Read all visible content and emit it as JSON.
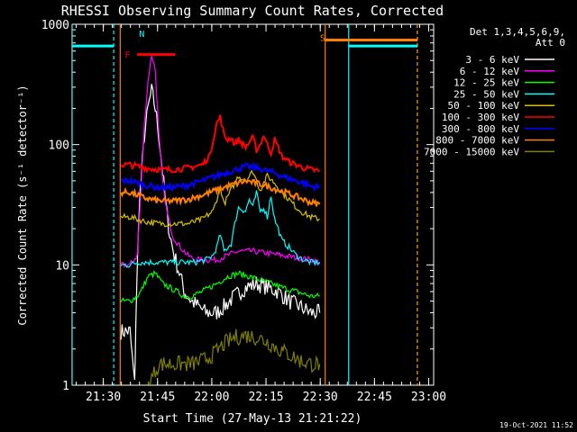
{
  "chart_data": {
    "type": "line",
    "title": "RHESSI Observing Summary Count Rates, Corrected",
    "xlabel": "Start Time (27-May-13 21:21:22)",
    "ylabel": "Corrected Count Rate (s⁻¹ detector⁻¹)",
    "x_unit": "minutes after 21:21:22",
    "xlim": [
      0,
      100
    ],
    "ylim": [
      1,
      1000
    ],
    "y_scale": "log",
    "x_ticks": [
      {
        "x": 8.63,
        "label": "21:30"
      },
      {
        "x": 23.63,
        "label": "21:45"
      },
      {
        "x": 38.63,
        "label": "22:00"
      },
      {
        "x": 53.63,
        "label": "22:15"
      },
      {
        "x": 68.63,
        "label": "22:30"
      },
      {
        "x": 83.63,
        "label": "22:45"
      },
      {
        "x": 98.63,
        "label": "23:00"
      }
    ],
    "y_ticks": [
      {
        "y": 1,
        "label": "1"
      },
      {
        "y": 10,
        "label": "10"
      },
      {
        "y": 100,
        "label": "100"
      },
      {
        "y": 1000,
        "label": "1000"
      }
    ],
    "legend": {
      "position": "right",
      "header1": "Det 1,3,4,5,6,9,",
      "header2": "Att 0",
      "entries": [
        {
          "label": "3 - 6 keV",
          "color": "#ffffff"
        },
        {
          "label": "6 - 12 keV",
          "color": "#ff00ff"
        },
        {
          "label": "12 - 25 keV",
          "color": "#00ff00"
        },
        {
          "label": "25 - 50 keV",
          "color": "#00ffff"
        },
        {
          "label": "50 - 100 keV",
          "color": "#d8c000"
        },
        {
          "label": "100 - 300 keV",
          "color": "#ff0000"
        },
        {
          "label": "300 - 800 keV",
          "color": "#0000ff"
        },
        {
          "label": "800 - 7000 keV",
          "color": "#ff8000"
        },
        {
          "label": "7000 - 15000 keV",
          "color": "#808000"
        }
      ]
    },
    "series": [
      {
        "name": "3 - 6 keV",
        "color": "#000000",
        "x": [
          13.5,
          16,
          17.3,
          17.6,
          18.5,
          20,
          21,
          22,
          23,
          24,
          25,
          26,
          27,
          28,
          29,
          30,
          31,
          33,
          35,
          37,
          40,
          42,
          45,
          48,
          51,
          54,
          57,
          60,
          63,
          66,
          68.5
        ],
        "y": [
          2.8,
          2.8,
          1.0,
          3.2,
          30,
          120,
          200,
          280,
          200,
          120,
          60,
          30,
          18,
          13,
          10,
          8,
          6,
          5,
          4.5,
          4,
          4,
          4.5,
          5.5,
          6.5,
          7,
          6.5,
          6,
          5,
          4.5,
          4,
          4
        ]
      },
      {
        "name": "6 - 12 keV",
        "color": "#ff00ff",
        "x": [
          13.5,
          16,
          18,
          19,
          20,
          21,
          22,
          23,
          24,
          25,
          26,
          27,
          28,
          30,
          32,
          34,
          37,
          40,
          43,
          46,
          50,
          54,
          58,
          62,
          66,
          68.5
        ],
        "y": [
          10,
          10,
          12,
          40,
          150,
          340,
          560,
          420,
          120,
          50,
          30,
          22,
          17,
          14,
          12,
          11,
          11,
          11,
          12,
          13,
          13,
          12.5,
          12,
          11.5,
          11,
          10.5
        ]
      },
      {
        "name": "12 - 25 keV",
        "color": "#00ff00",
        "x": [
          13.5,
          16,
          18,
          19,
          21,
          23,
          25,
          27,
          29,
          31,
          33,
          36,
          40,
          43,
          46,
          49,
          52,
          55,
          58,
          62,
          66,
          68.5
        ],
        "y": [
          5,
          5,
          5.5,
          6,
          8,
          8.5,
          7,
          6.5,
          6,
          5.5,
          5.5,
          6,
          7,
          8,
          8.5,
          8,
          7.5,
          7,
          6.5,
          6,
          5.5,
          5.5
        ]
      },
      {
        "name": "25 - 50 keV",
        "color": "#00ffff",
        "x": [
          13.5,
          16,
          18,
          20,
          22,
          25,
          28,
          31,
          34,
          37,
          39,
          40,
          41,
          42,
          44,
          45,
          46,
          48,
          49,
          50,
          51,
          52,
          53,
          54,
          55,
          56,
          57,
          58,
          60,
          62,
          64,
          66,
          68.5
        ],
        "y": [
          10,
          10,
          10.5,
          10.5,
          10.5,
          10.5,
          10.5,
          10.5,
          10.5,
          11,
          12,
          14,
          18,
          13,
          15,
          22,
          30,
          28,
          35,
          30,
          40,
          28,
          30,
          25,
          38,
          24,
          20,
          16,
          14,
          12,
          11,
          10.5,
          10.5
        ]
      },
      {
        "name": "50 - 100 keV",
        "color": "#d8c000",
        "x": [
          13.5,
          16,
          18,
          20,
          24,
          28,
          32,
          36,
          39,
          40,
          41,
          42,
          44,
          46,
          48,
          50,
          52,
          54,
          56,
          58,
          60,
          62,
          64,
          66,
          68.5
        ],
        "y": [
          25,
          25,
          24,
          23,
          22,
          22,
          22,
          24,
          28,
          35,
          45,
          32,
          42,
          55,
          50,
          60,
          42,
          55,
          48,
          40,
          35,
          30,
          27,
          25,
          24
        ]
      },
      {
        "name": "100 - 300 keV",
        "color": "#ff0000",
        "x": [
          13.5,
          16,
          18,
          20,
          24,
          28,
          32,
          36,
          38,
          40,
          41,
          42,
          43,
          44,
          45,
          46,
          48,
          50,
          51,
          52,
          53,
          54,
          55,
          56,
          57,
          58,
          60,
          62,
          64,
          66,
          68.5
        ],
        "y": [
          68,
          68,
          66,
          64,
          62,
          62,
          64,
          68,
          80,
          150,
          170,
          120,
          110,
          115,
          100,
          110,
          95,
          115,
          90,
          100,
          120,
          100,
          85,
          110,
          95,
          80,
          72,
          68,
          64,
          62,
          60
        ]
      },
      {
        "name": "300 - 800 keV",
        "color": "#0000ff",
        "x": [
          13.5,
          16,
          18,
          20,
          24,
          28,
          32,
          36,
          40,
          44,
          48,
          52,
          56,
          60,
          64,
          66,
          68.5
        ],
        "y": [
          50,
          50,
          48,
          46,
          44,
          44,
          46,
          50,
          55,
          60,
          66,
          63,
          58,
          52,
          48,
          45,
          44
        ]
      },
      {
        "name": "800 - 7000 keV",
        "color": "#ff8000",
        "x": [
          13.5,
          16,
          18,
          20,
          24,
          28,
          32,
          36,
          40,
          44,
          48,
          52,
          56,
          60,
          64,
          66,
          68.5
        ],
        "y": [
          40,
          40,
          38,
          36,
          34,
          34,
          35,
          38,
          42,
          46,
          50,
          47,
          43,
          39,
          35,
          33,
          32
        ]
      },
      {
        "name": "7000 - 15000 keV",
        "color": "#808000",
        "x": [
          21,
          24,
          27,
          30,
          33,
          36,
          39,
          42,
          45,
          48,
          51,
          54,
          57,
          60,
          63,
          66,
          68.5
        ],
        "y": [
          1,
          1.5,
          1.5,
          1.5,
          1.5,
          1.6,
          1.8,
          2.2,
          2.5,
          2.6,
          2.5,
          2.3,
          2.0,
          1.8,
          1.6,
          1.5,
          1.5
        ]
      }
    ],
    "state_bars": [
      {
        "name": "night",
        "color": "#00ffff",
        "x1": 0,
        "x2": 11.5,
        "y": 660
      },
      {
        "name": "night",
        "color": "#00ffff",
        "x1": 76.5,
        "x2": 95.5,
        "y": 660
      },
      {
        "name": "saa",
        "color": "#ff8000",
        "x1": 70,
        "x2": 95.5,
        "y": 740
      },
      {
        "name": "flare",
        "color": "#ff0000",
        "x1": 18,
        "x2": 28.5,
        "y": 560
      }
    ],
    "state_markers": [
      {
        "text": "N",
        "color": "#00ffff",
        "x": 19.3,
        "y": 840
      },
      {
        "text": "S",
        "color": "#ff8000",
        "x": 69.3,
        "y": 780
      },
      {
        "text": "F",
        "color": "#ff0000",
        "x": 15.3,
        "y": 560
      }
    ],
    "vlines": [
      {
        "x": 0,
        "color": "#00ffff",
        "dashed": false
      },
      {
        "x": 11.5,
        "color": "#00ffff",
        "dashed": true
      },
      {
        "x": 76.5,
        "color": "#00ffff",
        "dashed": false
      },
      {
        "x": 95.5,
        "color": "#00ffff",
        "dashed": true
      },
      {
        "x": 13.3,
        "color": "#ff8000",
        "dashed": false
      },
      {
        "x": 70,
        "color": "#ff8000",
        "dashed": false
      },
      {
        "x": 95.5,
        "color": "#ff8000",
        "dashed": true
      }
    ]
  },
  "footer": {
    "timestamp": "19-Oct-2021 11:52"
  }
}
